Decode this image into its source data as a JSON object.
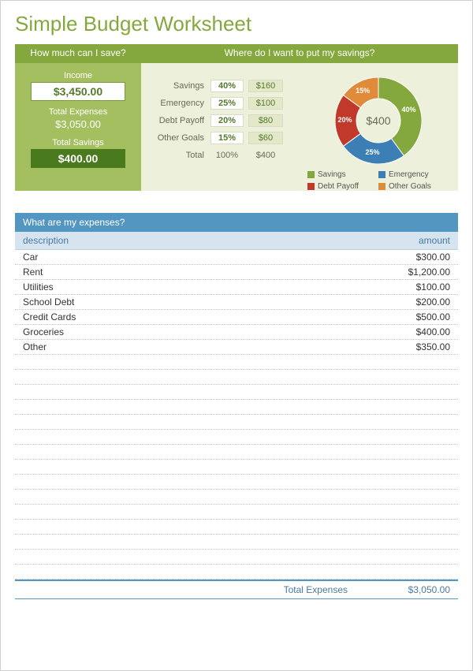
{
  "title": "Simple Budget Worksheet",
  "left_panel": {
    "header": "How much can I save?",
    "income_label": "Income",
    "income_value": "$3,450.00",
    "total_expenses_label": "Total Expenses",
    "total_expenses_value": "$3,050.00",
    "total_savings_label": "Total Savings",
    "total_savings_value": "$400.00"
  },
  "right_panel": {
    "header": "Where do I want to put my savings?",
    "rows": [
      {
        "name": "Savings",
        "pct": "40%",
        "amt": "$160"
      },
      {
        "name": "Emergency",
        "pct": "25%",
        "amt": "$100"
      },
      {
        "name": "Debt Payoff",
        "pct": "20%",
        "amt": "$80"
      },
      {
        "name": "Other Goals",
        "pct": "15%",
        "amt": "$60"
      }
    ],
    "total_label": "Total",
    "total_pct": "100%",
    "total_amt": "$400"
  },
  "chart": {
    "type": "donut",
    "center_label": "$400",
    "outer_radius": 55,
    "inner_radius": 28,
    "background_color": "#edf0da",
    "slices": [
      {
        "label": "Savings",
        "pct": 40,
        "color": "#85a83e",
        "text": "40%"
      },
      {
        "label": "Emergency",
        "pct": 25,
        "color": "#3b7fb5",
        "text": "25%"
      },
      {
        "label": "Debt Payoff",
        "pct": 20,
        "color": "#c0392b",
        "text": "20%"
      },
      {
        "label": "Other Goals",
        "pct": 15,
        "color": "#e08b3a",
        "text": "15%"
      }
    ],
    "legend": [
      {
        "label": "Savings",
        "color": "#85a83e"
      },
      {
        "label": "Emergency",
        "color": "#3b7fb5"
      },
      {
        "label": "Debt Payoff",
        "color": "#c0392b"
      },
      {
        "label": "Other Goals",
        "color": "#e08b3a"
      }
    ]
  },
  "expenses": {
    "header": "What are my expenses?",
    "col_desc": "description",
    "col_amt": "amount",
    "rows": [
      {
        "desc": "Car",
        "amt": "$300.00"
      },
      {
        "desc": "Rent",
        "amt": "$1,200.00"
      },
      {
        "desc": "Utilities",
        "amt": "$100.00"
      },
      {
        "desc": "School Debt",
        "amt": "$200.00"
      },
      {
        "desc": "Credit Cards",
        "amt": "$500.00"
      },
      {
        "desc": "Groceries",
        "amt": "$400.00"
      },
      {
        "desc": "Other",
        "amt": "$350.00"
      }
    ],
    "blank_rows": 15,
    "footer_label": "Total Expenses",
    "footer_value": "$3,050.00"
  },
  "colors": {
    "title": "#85a83e",
    "left_bg": "#a4bf5f",
    "left_head_bg": "#85a83e",
    "savings_box_bg": "#4a7a1e",
    "right_bg": "#edf0da",
    "blue_header": "#5296c1",
    "blue_sub": "#d5e4ef"
  }
}
